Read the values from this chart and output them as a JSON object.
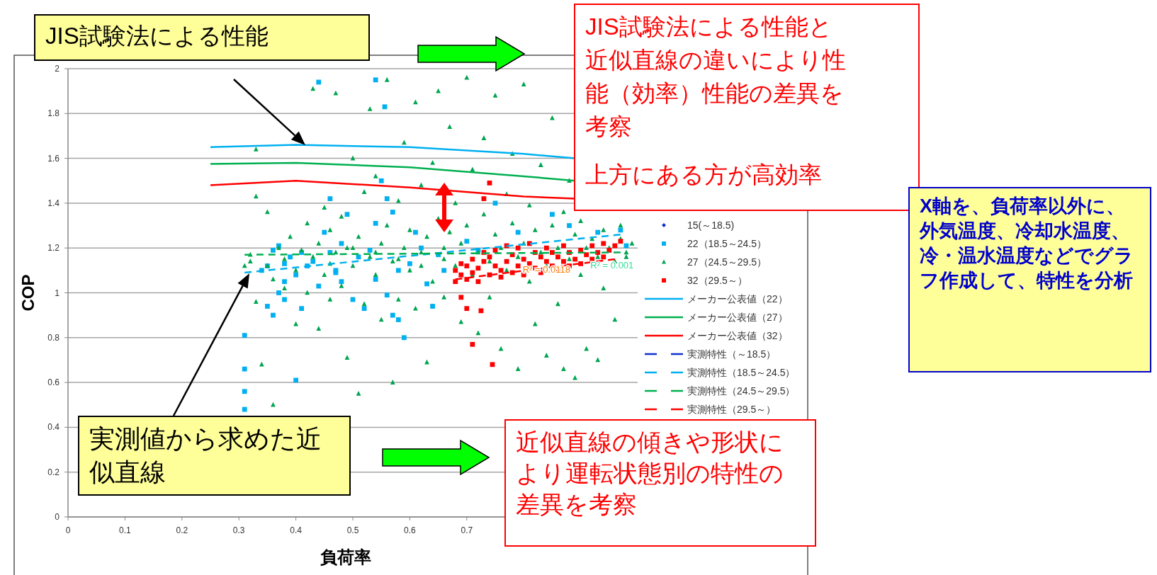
{
  "chart_data": {
    "type": "scatter",
    "xlabel": "負荷率",
    "ylabel": "COP",
    "xlim": [
      0,
      1
    ],
    "ylim": [
      0,
      2
    ],
    "xticks": [
      0,
      0.1,
      0.2,
      0.3,
      0.4,
      0.5,
      0.6,
      0.7
    ],
    "yticks": [
      0,
      0.2,
      0.4,
      0.6,
      0.8,
      1,
      1.2,
      1.4,
      1.6,
      1.8,
      2
    ],
    "grid": "y",
    "legend": "right",
    "series": [
      {
        "name": "15(～18.5)",
        "type": "scatter",
        "marker": "diamond",
        "color": "#1030d0"
      },
      {
        "name": "22（18.5～24.5）",
        "type": "scatter",
        "marker": "square",
        "color": "#00b0f0",
        "x": [
          0.31,
          0.31,
          0.31,
          0.31,
          0.34,
          0.35,
          0.35,
          0.36,
          0.36,
          0.37,
          0.37,
          0.38,
          0.38,
          0.38,
          0.39,
          0.4,
          0.4,
          0.41,
          0.41,
          0.42,
          0.43,
          0.44,
          0.44,
          0.45,
          0.46,
          0.46,
          0.47,
          0.47,
          0.48,
          0.48,
          0.49,
          0.5,
          0.51,
          0.52,
          0.53,
          0.54,
          0.54,
          0.54,
          0.556,
          0.55,
          0.56,
          0.56,
          0.57,
          0.57,
          0.58,
          0.58,
          0.59,
          0.6,
          0.61,
          0.62,
          0.63,
          0.64,
          0.65,
          0.66,
          0.7,
          0.72,
          0.75,
          0.79,
          0.85,
          0.88,
          0.93,
          0.97,
          0.98
        ],
        "values": [
          0.48,
          0.56,
          0.66,
          0.81,
          1.1,
          1.12,
          0.94,
          0.9,
          1.19,
          1.21,
          1.0,
          0.97,
          1.05,
          1.13,
          1.16,
          0.61,
          1.08,
          0.93,
          1.18,
          1.12,
          1.14,
          1.94,
          1.03,
          1.27,
          1.42,
          1.18,
          1.1,
          1.09,
          1.22,
          1.05,
          1.35,
          0.97,
          1.16,
          0.93,
          1.19,
          1.31,
          1.06,
          1.95,
          1.83,
          1.5,
          1.42,
          0.99,
          1.36,
          0.9,
          0.88,
          1.1,
          0.8,
          1.13,
          1.27,
          1.2,
          1.04,
          0.94,
          1.17,
          1.1,
          1.23,
          1.19,
          1.4,
          1.27,
          1.35,
          1.3,
          1.27,
          1.28,
          1.21
        ]
      },
      {
        "name": "27（24.5～29.5）",
        "type": "scatter",
        "marker": "triangle",
        "color": "#00a550",
        "x": [
          0.31,
          0.32,
          0.32,
          0.33,
          0.33,
          0.33,
          0.34,
          0.35,
          0.35,
          0.36,
          0.36,
          0.37,
          0.38,
          0.38,
          0.39,
          0.4,
          0.4,
          0.41,
          0.42,
          0.42,
          0.43,
          0.43,
          0.44,
          0.44,
          0.45,
          0.45,
          0.46,
          0.46,
          0.47,
          0.47,
          0.48,
          0.48,
          0.49,
          0.49,
          0.5,
          0.5,
          0.51,
          0.51,
          0.52,
          0.52,
          0.53,
          0.53,
          0.54,
          0.54,
          0.55,
          0.55,
          0.56,
          0.56,
          0.57,
          0.57,
          0.58,
          0.58,
          0.59,
          0.59,
          0.6,
          0.6,
          0.61,
          0.61,
          0.62,
          0.62,
          0.63,
          0.63,
          0.64,
          0.64,
          0.65,
          0.65,
          0.66,
          0.66,
          0.67,
          0.67,
          0.68,
          0.68,
          0.69,
          0.69,
          0.7,
          0.7,
          0.71,
          0.71,
          0.72,
          0.72,
          0.73,
          0.73,
          0.74,
          0.74,
          0.75,
          0.75,
          0.76,
          0.76,
          0.77,
          0.77,
          0.78,
          0.78,
          0.79,
          0.79,
          0.8,
          0.8,
          0.81,
          0.81,
          0.82,
          0.82,
          0.83,
          0.83,
          0.84,
          0.84,
          0.85,
          0.85,
          0.86,
          0.86,
          0.87,
          0.87,
          0.88,
          0.88,
          0.89,
          0.89,
          0.9,
          0.9,
          0.91,
          0.91,
          0.92,
          0.93,
          0.93,
          0.94,
          0.94,
          0.95,
          0.96,
          0.96,
          0.97,
          0.97,
          0.98,
          0.98,
          0.99,
          0.66,
          0.62,
          0.58,
          0.54,
          0.5,
          0.46
        ],
        "values": [
          1.12,
          1.14,
          1.17,
          0.96,
          1.43,
          1.64,
          0.68,
          1.36,
          1.12,
          0.5,
          1.06,
          1.2,
          1.15,
          1.02,
          1.25,
          1.1,
          0.86,
          1.19,
          1.31,
          1.0,
          1.16,
          1.91,
          0.84,
          1.22,
          1.08,
          1.38,
          1.28,
          0.97,
          1.18,
          1.89,
          1.03,
          1.34,
          1.2,
          0.71,
          1.12,
          1.6,
          1.25,
          0.55,
          1.45,
          0.95,
          1.82,
          1.16,
          1.08,
          1.52,
          1.22,
          0.88,
          1.3,
          1.95,
          1.14,
          0.6,
          1.41,
          0.97,
          1.2,
          1.67,
          1.1,
          1.28,
          1.85,
          0.93,
          1.18,
          1.48,
          1.25,
          0.69,
          1.05,
          1.58,
          1.33,
          1.9,
          1.15,
          0.98,
          1.27,
          1.74,
          1.12,
          1.4,
          1.22,
          0.87,
          1.3,
          1.96,
          1.08,
          1.55,
          1.18,
          0.82,
          1.35,
          1.69,
          1.14,
          0.98,
          1.26,
          1.88,
          1.2,
          0.75,
          1.44,
          1.1,
          1.31,
          1.62,
          1.16,
          0.66,
          1.22,
          1.93,
          1.05,
          1.39,
          1.28,
          0.86,
          1.18,
          1.57,
          1.12,
          0.72,
          1.3,
          1.78,
          1.2,
          0.95,
          1.36,
          0.66,
          1.15,
          1.5,
          1.26,
          0.62,
          1.08,
          1.32,
          1.2,
          0.75,
          1.24,
          1.16,
          0.7,
          1.28,
          1.02,
          1.2,
          1.14,
          0.88,
          1.24,
          1.3,
          1.18,
          1.16,
          1.22,
          1.2,
          1.12,
          1.15,
          1.18,
          1.2,
          1.13
        ]
      },
      {
        "name": "32（29.5～）",
        "type": "scatter",
        "marker": "square",
        "color": "#ff0000",
        "x": [
          0.68,
          0.68,
          0.69,
          0.69,
          0.7,
          0.7,
          0.71,
          0.71,
          0.72,
          0.72,
          0.73,
          0.73,
          0.74,
          0.74,
          0.75,
          0.75,
          0.76,
          0.76,
          0.77,
          0.77,
          0.78,
          0.78,
          0.79,
          0.79,
          0.8,
          0.8,
          0.81,
          0.81,
          0.82,
          0.82,
          0.83,
          0.83,
          0.84,
          0.84,
          0.85,
          0.85,
          0.86,
          0.86,
          0.87,
          0.87,
          0.88,
          0.88,
          0.89,
          0.9,
          0.9,
          0.91,
          0.92,
          0.92,
          0.93,
          0.94,
          0.94,
          0.95,
          0.96,
          0.97,
          0.69,
          0.7,
          0.71,
          0.745,
          0.725,
          0.74,
          0.73
        ],
        "values": [
          1.05,
          1.1,
          1.08,
          1.13,
          1.06,
          1.12,
          1.09,
          1.15,
          1.05,
          1.11,
          1.14,
          1.18,
          1.08,
          1.16,
          1.12,
          1.19,
          1.1,
          1.07,
          1.14,
          1.21,
          1.09,
          1.17,
          1.12,
          1.2,
          1.08,
          1.15,
          1.13,
          1.22,
          1.11,
          1.18,
          1.09,
          1.16,
          1.14,
          1.2,
          1.12,
          1.18,
          1.1,
          1.16,
          1.14,
          1.21,
          1.12,
          1.18,
          1.15,
          1.13,
          1.19,
          1.17,
          1.15,
          1.21,
          1.18,
          1.16,
          1.22,
          1.19,
          1.21,
          1.23,
          0.98,
          0.93,
          0.77,
          0.68,
          0.92,
          1.49,
          1.42
        ]
      },
      {
        "name": "メーカー公表値（22）",
        "type": "line",
        "line_style": "solid",
        "color": "#00b0f0",
        "x": [
          0.25,
          0.4,
          0.6,
          0.8,
          0.89
        ],
        "values": [
          1.65,
          1.66,
          1.65,
          1.62,
          1.6
        ]
      },
      {
        "name": "メーカー公表値（27）",
        "type": "line",
        "line_style": "solid",
        "color": "#00b050",
        "x": [
          0.25,
          0.4,
          0.6,
          0.8,
          0.89
        ],
        "values": [
          1.575,
          1.58,
          1.56,
          1.52,
          1.5
        ]
      },
      {
        "name": "メーカー公表値（32）",
        "type": "line",
        "line_style": "solid",
        "color": "#ff0000",
        "x": [
          0.25,
          0.4,
          0.6,
          0.8,
          0.89
        ],
        "values": [
          1.48,
          1.5,
          1.47,
          1.43,
          1.42
        ]
      },
      {
        "name": "実測特性（～18.5）",
        "type": "line",
        "line_style": "dashed",
        "color": "#1030d0"
      },
      {
        "name": "実測特性（18.5～24.5）",
        "type": "line",
        "line_style": "dashed",
        "color": "#00b0f0",
        "x": [
          0.31,
          0.97
        ],
        "values": [
          1.09,
          1.26
        ]
      },
      {
        "name": "実測特性（24.5～29.5）",
        "type": "line",
        "line_style": "dashed",
        "color": "#00b050",
        "x": [
          0.31,
          0.97
        ],
        "values": [
          1.17,
          1.18
        ]
      },
      {
        "name": "実測特性（29.5～）",
        "type": "line",
        "line_style": "dashed",
        "color": "#ff0000",
        "x": [
          0.68,
          0.96
        ],
        "values": [
          1.06,
          1.15
        ]
      }
    ],
    "annotations": [
      "JIS試験法による性能",
      "JIS試験法による性能と近似直線の違いにより性能（効率）性能の差異を考察",
      "上方にある方が高効率",
      "実測値から求めた近似直線",
      "近似直線の傾きや形状により運転状態別の特性の差異を考察",
      "X軸を、負荷率以外に、外気温度、冷却水温度、冷・温水温度などでグラフ作成して、特性を分析",
      {
        "text": "R² = 0.0118",
        "x": 0.84,
        "y": 1.105
      },
      {
        "text": "R² = 0.001",
        "x": 0.955,
        "y": 1.125
      }
    ]
  }
}
